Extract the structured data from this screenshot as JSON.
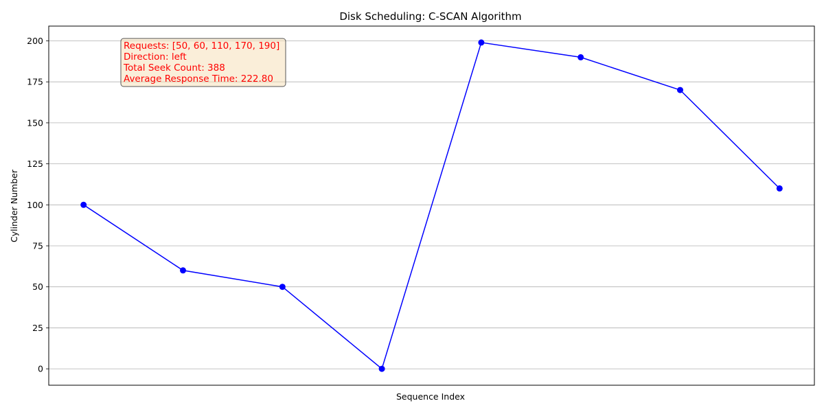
{
  "chart_data": {
    "type": "line",
    "title": "Disk Scheduling: C-SCAN Algorithm",
    "xlabel": "Sequence Index",
    "ylabel": "Cylinder Number",
    "x_ticks_visible": false,
    "ylim": [
      -10,
      209
    ],
    "yticks": [
      0,
      25,
      50,
      75,
      100,
      125,
      150,
      175,
      200
    ],
    "grid": "y-axis horizontal lines",
    "series": [
      {
        "color": "#0000ff",
        "marker": "circle",
        "x": [
          0,
          1,
          2,
          3,
          4,
          5,
          6,
          7
        ],
        "values": [
          100,
          60,
          50,
          0,
          199,
          190,
          170,
          110
        ]
      }
    ],
    "annotation": {
      "lines": [
        "Requests: [50, 60, 110, 170, 190]",
        "Direction: left",
        "Total Seek Count: 388",
        "Average Response Time: 222.80"
      ],
      "text_color": "#ff0000",
      "box_color": "#f5deb3",
      "placement": "top-left"
    }
  }
}
